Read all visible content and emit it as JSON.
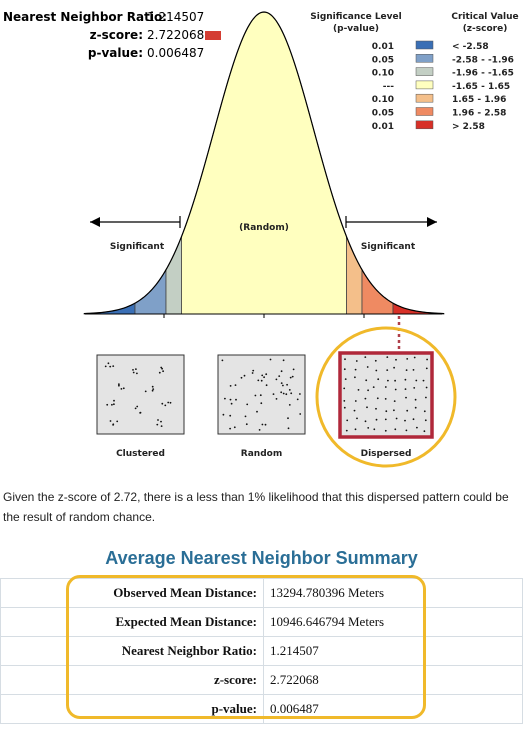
{
  "stats": [
    {
      "label": "Nearest Neighbor Ratio:",
      "value": "1.214507"
    },
    {
      "label": "z-score:",
      "value": "2.722068"
    },
    {
      "label": "p-value:",
      "value": "0.006487"
    }
  ],
  "zscore_marker_color": "#d43d33",
  "legend": {
    "sig_heading": [
      "Significance Level",
      "(p-value)"
    ],
    "crit_heading": [
      "Critical Value",
      "(z-score)"
    ],
    "rows": [
      {
        "p": "0.01",
        "color": "#3a6fb5",
        "z": "< -2.58"
      },
      {
        "p": "0.05",
        "color": "#7fa0c8",
        "z": "-2.58 - -1.96"
      },
      {
        "p": "0.10",
        "color": "#c3cfc4",
        "z": "-1.96 - -1.65"
      },
      {
        "p": "---",
        "color": "#ffffbf",
        "z": "-1.65 - 1.65"
      },
      {
        "p": "0.10",
        "color": "#f4bf8a",
        "z": "1.65 - 1.96"
      },
      {
        "p": "0.05",
        "color": "#ef8a62",
        "z": "1.96 - 2.58"
      },
      {
        "p": "0.01",
        "color": "#d73027",
        "z": "> 2.58"
      }
    ]
  },
  "curve_labels": {
    "left": "Significant",
    "center": "(Random)",
    "right": "Significant"
  },
  "patterns": [
    {
      "label": "Clustered",
      "highlighted": false
    },
    {
      "label": "Random",
      "highlighted": false
    },
    {
      "label": "Dispersed",
      "highlighted": true
    }
  ],
  "highlight_color": "#f0b92a",
  "chart_data": {
    "type": "area",
    "distribution": "standard normal",
    "bands": [
      {
        "range": "< -2.58",
        "color": "#3a6fb5"
      },
      {
        "range": "-2.58 - -1.96",
        "color": "#7fa0c8"
      },
      {
        "range": "-1.96 - -1.65",
        "color": "#c3cfc4"
      },
      {
        "range": "-1.65 - 1.65",
        "color": "#ffffbf"
      },
      {
        "range": "1.65 - 1.96",
        "color": "#f4bf8a"
      },
      {
        "range": "1.96 - 2.58",
        "color": "#ef8a62"
      },
      {
        "range": "> 2.58",
        "color": "#d73027"
      }
    ],
    "observed_z": 2.722068
  },
  "caption": "Given the z-score of 2.72, there is a less than 1% likelihood that this dispersed pattern could be the result of random chance.",
  "summary": {
    "title": "Average Nearest Neighbor Summary",
    "rows": [
      {
        "label": "Observed Mean Distance:",
        "value": "13294.780396 Meters"
      },
      {
        "label": "Expected Mean Distance:",
        "value": "10946.646794 Meters"
      },
      {
        "label": "Nearest Neighbor Ratio:",
        "value": "1.214507"
      },
      {
        "label": "z-score:",
        "value": "2.722068"
      },
      {
        "label": "p-value:",
        "value": "0.006487"
      }
    ]
  }
}
